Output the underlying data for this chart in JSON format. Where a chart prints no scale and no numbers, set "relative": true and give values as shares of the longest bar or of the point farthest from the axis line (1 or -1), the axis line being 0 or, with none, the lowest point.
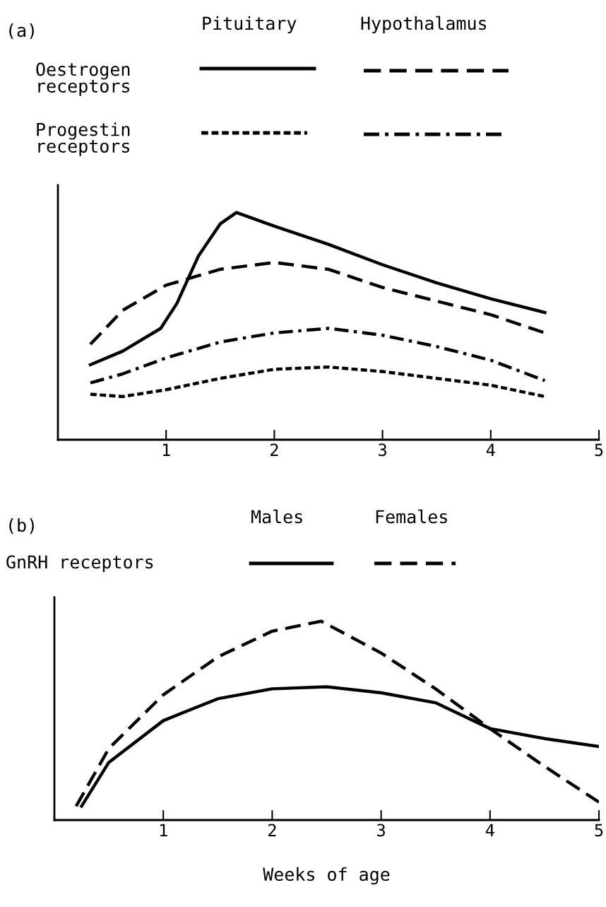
{
  "chart_data": [
    {
      "type": "line",
      "relative": true,
      "xlim": [
        0,
        5
      ],
      "xticks": [
        1,
        2,
        3,
        4,
        5
      ],
      "tick_labels": "x",
      "grid": false,
      "legend": false,
      "marker": "none",
      "annotations": [
        "(a)",
        "Pituitary",
        "Hypothalamus",
        "Oestrogen\nreceptors",
        "Progestin\nreceptors"
      ],
      "series": [
        {
          "color": "#000000",
          "line_style": "solid",
          "x": [
            0.3,
            0.6,
            0.95,
            1.1,
            1.3,
            1.5,
            1.65,
            2,
            2.5,
            3,
            3.5,
            4,
            4.5
          ],
          "values": [
            0.33,
            0.39,
            0.49,
            0.6,
            0.81,
            0.95,
            1.0,
            0.94,
            0.86,
            0.77,
            0.69,
            0.62,
            0.56
          ]
        },
        {
          "color": "#000000",
          "line_style": "dashed",
          "x": [
            0.3,
            0.6,
            1,
            1.5,
            2,
            2.5,
            3,
            3.5,
            4,
            4.5
          ],
          "values": [
            0.42,
            0.57,
            0.68,
            0.75,
            0.78,
            0.75,
            0.67,
            0.61,
            0.55,
            0.47
          ]
        },
        {
          "color": "#000000",
          "line_style": "dotted",
          "x": [
            0.3,
            0.6,
            1,
            1.5,
            2,
            2.5,
            3,
            3.5,
            4,
            4.5
          ],
          "values": [
            0.2,
            0.19,
            0.22,
            0.27,
            0.31,
            0.32,
            0.3,
            0.27,
            0.24,
            0.19
          ]
        },
        {
          "color": "#000000",
          "line_style": "dashdot",
          "x": [
            0.3,
            0.6,
            1,
            1.5,
            2,
            2.5,
            3,
            3.5,
            4,
            4.5
          ],
          "values": [
            0.25,
            0.29,
            0.36,
            0.43,
            0.47,
            0.49,
            0.46,
            0.41,
            0.35,
            0.26
          ]
        }
      ]
    },
    {
      "type": "line",
      "relative": true,
      "xlim": [
        0,
        5
      ],
      "xticks": [
        1,
        2,
        3,
        4,
        5
      ],
      "tick_labels": "x",
      "grid": false,
      "legend": false,
      "marker": "none",
      "xlabel": "Weeks of age",
      "annotations": [
        "(b)",
        "Males",
        "Females",
        "GnRH receptors"
      ],
      "series": [
        {
          "color": "#000000",
          "line_style": "solid",
          "x": [
            0.25,
            0.5,
            1,
            1.5,
            2,
            2.5,
            3,
            3.5,
            4,
            4.5,
            5
          ],
          "values": [
            0.07,
            0.29,
            0.5,
            0.61,
            0.66,
            0.67,
            0.64,
            0.59,
            0.46,
            0.41,
            0.37
          ]
        },
        {
          "color": "#000000",
          "line_style": "dashed",
          "x": [
            0.2,
            0.5,
            1,
            1.5,
            2,
            2.45,
            3,
            3.5,
            4,
            4.5,
            5
          ],
          "values": [
            0.07,
            0.36,
            0.63,
            0.82,
            0.95,
            1.0,
            0.84,
            0.66,
            0.46,
            0.27,
            0.09
          ]
        }
      ]
    }
  ]
}
